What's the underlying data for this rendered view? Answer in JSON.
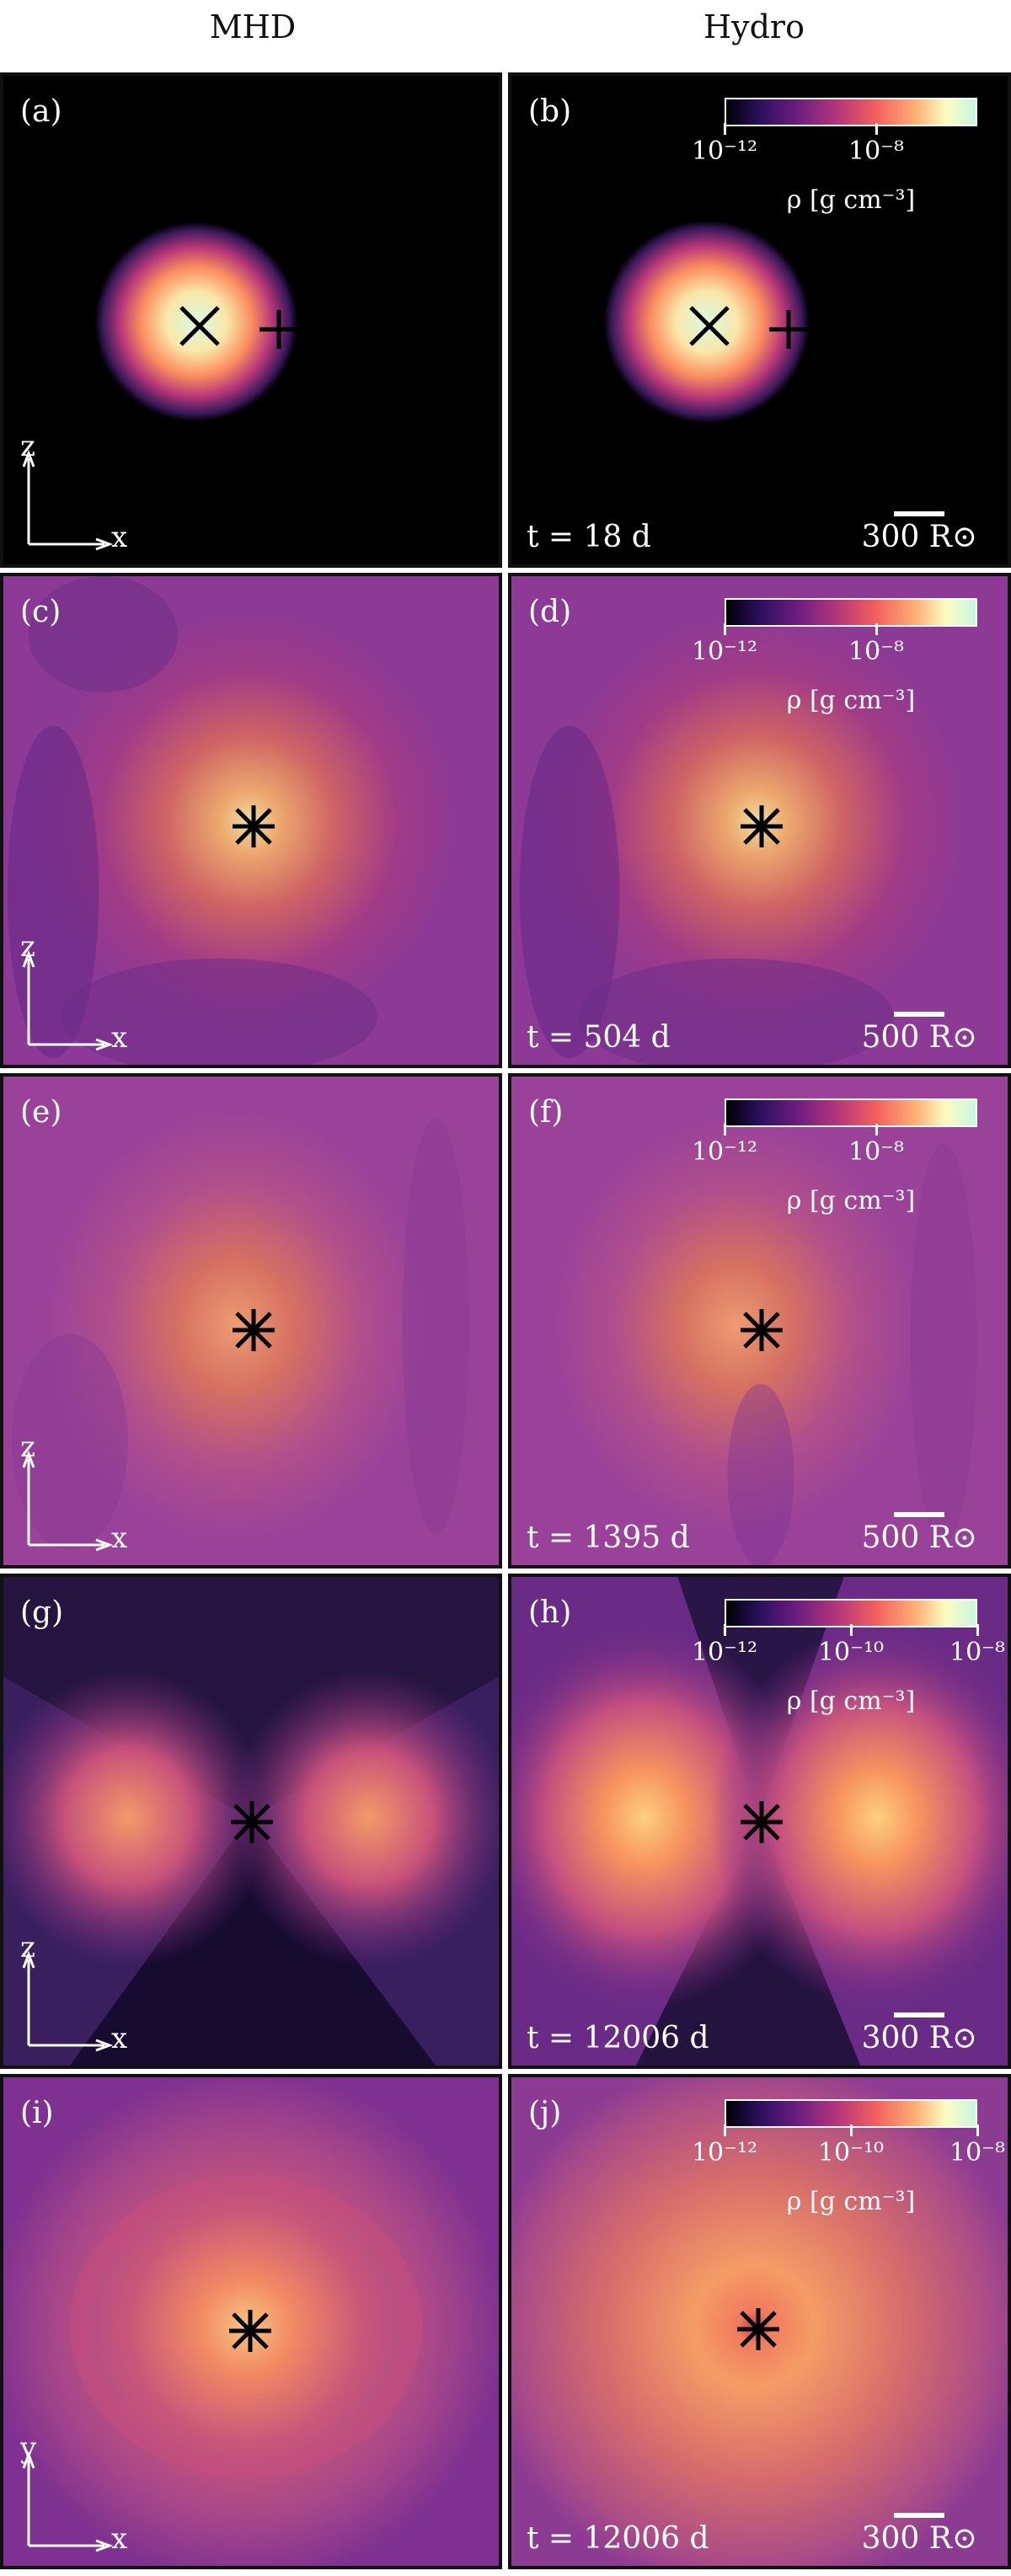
{
  "columns": {
    "left": "MHD",
    "right": "Hydro"
  },
  "panels": {
    "a": {
      "label": "(a)"
    },
    "b": {
      "label": "(b)",
      "time": "t = 18 d",
      "scale": "300 R⊙"
    },
    "c": {
      "label": "(c)"
    },
    "d": {
      "label": "(d)",
      "time": "t = 504 d",
      "scale": "500 R⊙"
    },
    "e": {
      "label": "(e)"
    },
    "f": {
      "label": "(f)",
      "time": "t = 1395 d",
      "scale": "500 R⊙"
    },
    "g": {
      "label": "(g)"
    },
    "h": {
      "label": "(h)",
      "time": "t = 12006 d",
      "scale": "300 R⊙"
    },
    "i": {
      "label": "(i)"
    },
    "j": {
      "label": "(j)",
      "time": "t = 12006 d",
      "scale": "300 R⊙"
    }
  },
  "axes": {
    "xz": {
      "horizontal": "x",
      "vertical": "z"
    },
    "xy": {
      "horizontal": "x",
      "vertical": "y"
    }
  },
  "colorbar": {
    "label": "ρ [g cm⁻³]",
    "ticks_two": [
      "10⁻¹²",
      "10⁻⁸"
    ],
    "ticks_three": [
      "10⁻¹²",
      "10⁻¹⁰",
      "10⁻⁸"
    ],
    "colors": [
      "#000004",
      "#721f81",
      "#f1605d",
      "#fcfdbf",
      "#c9f6e2"
    ]
  }
}
